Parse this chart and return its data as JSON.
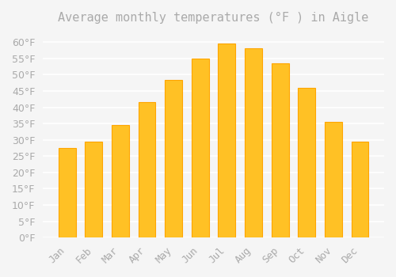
{
  "title": "Average monthly temperatures (°F ) in Aigle",
  "months": [
    "Jan",
    "Feb",
    "Mar",
    "Apr",
    "May",
    "Jun",
    "Jul",
    "Aug",
    "Sep",
    "Oct",
    "Nov",
    "Dec"
  ],
  "values": [
    27.5,
    29.5,
    34.5,
    41.5,
    48.5,
    55.0,
    59.5,
    58.0,
    53.5,
    46.0,
    35.5,
    29.5
  ],
  "bar_color": "#FFC125",
  "bar_edge_color": "#FFA500",
  "background_color": "#F5F5F5",
  "grid_color": "#FFFFFF",
  "text_color": "#AAAAAA",
  "ylim": [
    0,
    63
  ],
  "yticks": [
    0,
    5,
    10,
    15,
    20,
    25,
    30,
    35,
    40,
    45,
    50,
    55,
    60
  ],
  "title_fontsize": 11,
  "tick_fontsize": 9
}
